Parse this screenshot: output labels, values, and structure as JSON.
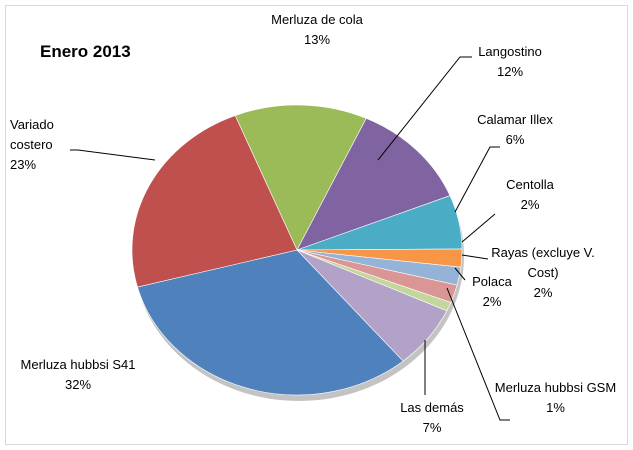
{
  "chart_data": {
    "type": "pie",
    "title": "Enero 2013",
    "categories": [
      "Merluza de cola",
      "Langostino",
      "Calamar Illex",
      "Centolla",
      "Rayas (excluye V. Cost)",
      "Polaca",
      "Merluza hubbsi GSM",
      "Las demás",
      "Merluza hubbsi S41",
      "Variado costero"
    ],
    "values": [
      13,
      12,
      6,
      2,
      2,
      2,
      1,
      7,
      32,
      23
    ],
    "value_labels": [
      "13%",
      "12%",
      "6%",
      "2%",
      "2%",
      "2%",
      "1%",
      "7%",
      "32%",
      "23%"
    ],
    "colors": [
      "#9bbb59",
      "#8064a2",
      "#4bacc6",
      "#f79646",
      "#95b3d7",
      "#d99694",
      "#c3d69b",
      "#b3a2c7",
      "#4f81bd",
      "#c0504d"
    ]
  }
}
